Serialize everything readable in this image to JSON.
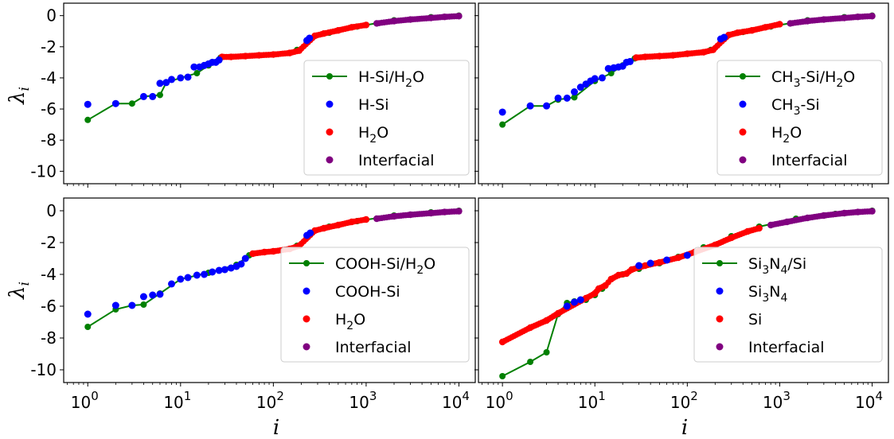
{
  "figure": {
    "ylabel": "λ",
    "ylabel_sub": "i",
    "xlabel": "i"
  },
  "chart_data": [
    {
      "type": "scatter",
      "xscale": "log",
      "xlim": [
        0.55,
        15000
      ],
      "ylim": [
        -10.8,
        0.8
      ],
      "yticks": [
        0,
        -2,
        -4,
        -6,
        -8,
        -10
      ],
      "ytick_labels": [
        "0",
        "-2",
        "-4",
        "-6",
        "-8",
        "-10"
      ],
      "xtick_labels": [],
      "legend_position": "center-right",
      "colors": {
        "line": "#008000",
        "a": "#0000ff",
        "b": "#ff0000",
        "inter": "#800080"
      },
      "legend": [
        {
          "kind": "line",
          "text": "H-Si/H",
          "sub": "2",
          "post": "O"
        },
        {
          "kind": "dot",
          "color_key": "a",
          "text": "H-Si",
          "sub": "",
          "post": ""
        },
        {
          "kind": "dot",
          "color_key": "b",
          "text": "H",
          "sub": "2",
          "post": "O"
        },
        {
          "kind": "dot",
          "color_key": "inter",
          "text": "Interfacial",
          "sub": "",
          "post": ""
        }
      ],
      "line_points": [
        [
          1,
          -6.7
        ],
        [
          2,
          -5.65
        ],
        [
          3,
          -5.65
        ],
        [
          4,
          -5.2
        ],
        [
          6,
          -5.1
        ],
        [
          7,
          -4.3
        ],
        [
          10,
          -4.0
        ],
        [
          15,
          -3.7
        ],
        [
          20,
          -3.2
        ],
        [
          27,
          -2.7
        ],
        [
          50,
          -2.6
        ],
        [
          100,
          -2.5
        ],
        [
          180,
          -2.2
        ],
        [
          250,
          -1.5
        ],
        [
          400,
          -1.1
        ],
        [
          800,
          -0.7
        ],
        [
          2000,
          -0.3
        ],
        [
          5000,
          -0.1
        ],
        [
          10000,
          0
        ]
      ],
      "series_a": [
        [
          1,
          -5.7
        ],
        [
          2,
          -5.65
        ],
        [
          4,
          -5.2
        ],
        [
          5,
          -5.2
        ],
        [
          6,
          -4.35
        ],
        [
          7,
          -4.3
        ],
        [
          8,
          -4.1
        ],
        [
          10,
          -4.0
        ],
        [
          12,
          -3.95
        ],
        [
          14,
          -3.3
        ],
        [
          16,
          -3.3
        ],
        [
          18,
          -3.2
        ],
        [
          20,
          -3.1
        ],
        [
          22,
          -3.0
        ],
        [
          24,
          -3.0
        ],
        [
          26,
          -2.85
        ],
        [
          230,
          -1.6
        ],
        [
          245,
          -1.45
        ]
      ],
      "series_b": [
        [
          28,
          -2.65
        ],
        [
          35,
          -2.65
        ],
        [
          50,
          -2.6
        ],
        [
          70,
          -2.55
        ],
        [
          100,
          -2.5
        ],
        [
          150,
          -2.4
        ],
        [
          190,
          -2.25
        ],
        [
          280,
          -1.3
        ],
        [
          350,
          -1.15
        ],
        [
          500,
          -0.95
        ],
        [
          700,
          -0.75
        ],
        [
          1000,
          -0.6
        ]
      ],
      "series_inter": [
        [
          1300,
          -0.5
        ],
        [
          2000,
          -0.35
        ],
        [
          3000,
          -0.25
        ],
        [
          5000,
          -0.15
        ],
        [
          7000,
          -0.08
        ],
        [
          10000,
          -0.03
        ]
      ]
    },
    {
      "type": "scatter",
      "xscale": "log",
      "xlim": [
        0.55,
        15000
      ],
      "ylim": [
        -10.8,
        0.8
      ],
      "yticks": [
        0,
        -2,
        -4,
        -6,
        -8,
        -10
      ],
      "ytick_labels": [],
      "xtick_labels": [],
      "legend_position": "center-right",
      "colors": {
        "line": "#008000",
        "a": "#0000ff",
        "b": "#ff0000",
        "inter": "#800080"
      },
      "legend": [
        {
          "kind": "line",
          "text": "CH",
          "sub": "3",
          "post": "-Si/H",
          "sub2": "2",
          "post2": "O"
        },
        {
          "kind": "dot",
          "color_key": "a",
          "text": "CH",
          "sub": "3",
          "post": "-Si"
        },
        {
          "kind": "dot",
          "color_key": "b",
          "text": "H",
          "sub": "2",
          "post": "O"
        },
        {
          "kind": "dot",
          "color_key": "inter",
          "text": "Interfacial",
          "sub": "",
          "post": ""
        }
      ],
      "line_points": [
        [
          1,
          -7.0
        ],
        [
          2,
          -5.8
        ],
        [
          3,
          -5.8
        ],
        [
          4,
          -5.4
        ],
        [
          6,
          -5.25
        ],
        [
          10,
          -4.2
        ],
        [
          15,
          -3.7
        ],
        [
          20,
          -3.2
        ],
        [
          27,
          -2.75
        ],
        [
          50,
          -2.6
        ],
        [
          100,
          -2.45
        ],
        [
          180,
          -2.2
        ],
        [
          250,
          -1.4
        ],
        [
          400,
          -1.05
        ],
        [
          800,
          -0.7
        ],
        [
          2000,
          -0.3
        ],
        [
          5000,
          -0.1
        ],
        [
          10000,
          0
        ]
      ],
      "series_a": [
        [
          1,
          -6.2
        ],
        [
          2,
          -5.8
        ],
        [
          3,
          -5.8
        ],
        [
          4,
          -5.3
        ],
        [
          5,
          -5.3
        ],
        [
          6,
          -4.9
        ],
        [
          7,
          -4.6
        ],
        [
          8,
          -4.4
        ],
        [
          9,
          -4.2
        ],
        [
          10,
          -4.05
        ],
        [
          12,
          -4.0
        ],
        [
          14,
          -3.4
        ],
        [
          16,
          -3.35
        ],
        [
          18,
          -3.3
        ],
        [
          20,
          -3.25
        ],
        [
          22,
          -3.0
        ],
        [
          24,
          -2.95
        ],
        [
          230,
          -1.5
        ],
        [
          250,
          -1.4
        ]
      ],
      "series_b": [
        [
          28,
          -2.7
        ],
        [
          35,
          -2.65
        ],
        [
          50,
          -2.6
        ],
        [
          70,
          -2.55
        ],
        [
          100,
          -2.45
        ],
        [
          150,
          -2.35
        ],
        [
          190,
          -2.2
        ],
        [
          280,
          -1.25
        ],
        [
          350,
          -1.1
        ],
        [
          500,
          -0.95
        ],
        [
          700,
          -0.75
        ],
        [
          1000,
          -0.55
        ]
      ],
      "series_inter": [
        [
          1300,
          -0.5
        ],
        [
          2000,
          -0.35
        ],
        [
          3000,
          -0.25
        ],
        [
          5000,
          -0.15
        ],
        [
          7000,
          -0.08
        ],
        [
          10000,
          -0.03
        ]
      ]
    },
    {
      "type": "scatter",
      "xscale": "log",
      "xlim": [
        0.55,
        15000
      ],
      "ylim": [
        -10.8,
        0.8
      ],
      "yticks": [
        0,
        -2,
        -4,
        -6,
        -8,
        -10
      ],
      "ytick_labels": [
        "0",
        "-2",
        "-4",
        "-6",
        "-8",
        "-10"
      ],
      "xtick_labels": [
        "10",
        "10",
        "10",
        "10",
        "10"
      ],
      "xtick_exps": [
        "0",
        "1",
        "2",
        "3",
        "4"
      ],
      "legend_position": "center-right",
      "colors": {
        "line": "#008000",
        "a": "#0000ff",
        "b": "#ff0000",
        "inter": "#800080"
      },
      "legend": [
        {
          "kind": "line",
          "text": "COOH-Si/H",
          "sub": "2",
          "post": "O"
        },
        {
          "kind": "dot",
          "color_key": "a",
          "text": "COOH-Si",
          "sub": "",
          "post": ""
        },
        {
          "kind": "dot",
          "color_key": "b",
          "text": "H",
          "sub": "2",
          "post": "O"
        },
        {
          "kind": "dot",
          "color_key": "inter",
          "text": "Interfacial",
          "sub": "",
          "post": ""
        }
      ],
      "line_points": [
        [
          1,
          -7.3
        ],
        [
          2,
          -6.2
        ],
        [
          3,
          -5.95
        ],
        [
          4,
          -5.9
        ],
        [
          6,
          -5.2
        ],
        [
          10,
          -4.3
        ],
        [
          20,
          -3.9
        ],
        [
          40,
          -3.4
        ],
        [
          55,
          -2.8
        ],
        [
          100,
          -2.55
        ],
        [
          180,
          -2.2
        ],
        [
          250,
          -1.4
        ],
        [
          400,
          -1.0
        ],
        [
          800,
          -0.65
        ],
        [
          2000,
          -0.3
        ],
        [
          5000,
          -0.1
        ],
        [
          10000,
          0
        ]
      ],
      "series_a": [
        [
          1,
          -6.5
        ],
        [
          2,
          -5.95
        ],
        [
          3,
          -5.95
        ],
        [
          4,
          -5.4
        ],
        [
          5,
          -5.3
        ],
        [
          6,
          -5.25
        ],
        [
          8,
          -4.6
        ],
        [
          10,
          -4.3
        ],
        [
          12,
          -4.2
        ],
        [
          15,
          -4.05
        ],
        [
          18,
          -4.0
        ],
        [
          22,
          -3.85
        ],
        [
          26,
          -3.75
        ],
        [
          30,
          -3.7
        ],
        [
          35,
          -3.6
        ],
        [
          40,
          -3.5
        ],
        [
          45,
          -3.35
        ],
        [
          50,
          -3.0
        ],
        [
          230,
          -1.55
        ],
        [
          250,
          -1.4
        ]
      ],
      "series_b": [
        [
          60,
          -2.7
        ],
        [
          80,
          -2.6
        ],
        [
          100,
          -2.55
        ],
        [
          150,
          -2.4
        ],
        [
          190,
          -2.2
        ],
        [
          280,
          -1.25
        ],
        [
          350,
          -1.1
        ],
        [
          500,
          -0.9
        ],
        [
          700,
          -0.7
        ],
        [
          1000,
          -0.55
        ]
      ],
      "series_inter": [
        [
          1300,
          -0.5
        ],
        [
          2000,
          -0.35
        ],
        [
          3000,
          -0.25
        ],
        [
          5000,
          -0.15
        ],
        [
          7000,
          -0.08
        ],
        [
          10000,
          -0.03
        ]
      ]
    },
    {
      "type": "scatter",
      "xscale": "log",
      "xlim": [
        0.55,
        15000
      ],
      "ylim": [
        -10.8,
        0.8
      ],
      "yticks": [
        0,
        -2,
        -4,
        -6,
        -8,
        -10
      ],
      "ytick_labels": [],
      "xtick_labels": [
        "10",
        "10",
        "10",
        "10",
        "10"
      ],
      "xtick_exps": [
        "0",
        "1",
        "2",
        "3",
        "4"
      ],
      "legend_position": "center-right",
      "colors": {
        "line": "#008000",
        "a": "#0000ff",
        "b": "#ff0000",
        "inter": "#800080"
      },
      "legend": [
        {
          "kind": "line",
          "text": "Si",
          "sub": "3",
          "post": "N",
          "sub2": "4",
          "post2": "/Si"
        },
        {
          "kind": "dot",
          "color_key": "a",
          "text": "Si",
          "sub": "3",
          "post": "N",
          "sub2": "4",
          "post2": ""
        },
        {
          "kind": "dot",
          "color_key": "b",
          "text": "Si",
          "sub": "",
          "post": ""
        },
        {
          "kind": "dot",
          "color_key": "inter",
          "text": "Interfacial",
          "sub": "",
          "post": ""
        }
      ],
      "line_points": [
        [
          1,
          -10.4
        ],
        [
          2,
          -9.5
        ],
        [
          3,
          -8.9
        ],
        [
          4,
          -6.5
        ],
        [
          5,
          -5.8
        ],
        [
          6,
          -5.7
        ],
        [
          8,
          -5.6
        ],
        [
          10,
          -5.3
        ],
        [
          12,
          -4.9
        ],
        [
          15,
          -4.3
        ],
        [
          20,
          -4.0
        ],
        [
          30,
          -3.65
        ],
        [
          50,
          -3.3
        ],
        [
          80,
          -2.9
        ],
        [
          150,
          -2.3
        ],
        [
          300,
          -1.6
        ],
        [
          600,
          -1.0
        ],
        [
          1500,
          -0.5
        ],
        [
          4000,
          -0.2
        ],
        [
          10000,
          0
        ]
      ],
      "series_a": [
        [
          5,
          -6.0
        ],
        [
          6,
          -5.75
        ],
        [
          7,
          -5.6
        ],
        [
          30,
          -3.45
        ],
        [
          40,
          -3.3
        ],
        [
          60,
          -3.1
        ],
        [
          100,
          -2.8
        ]
      ],
      "series_b": [
        [
          1,
          -8.25
        ],
        [
          2,
          -7.35
        ],
        [
          3,
          -6.9
        ],
        [
          4,
          -6.45
        ],
        [
          8,
          -5.5
        ],
        [
          10,
          -5.2
        ],
        [
          11,
          -4.9
        ],
        [
          13,
          -4.7
        ],
        [
          15,
          -4.3
        ],
        [
          18,
          -4.05
        ],
        [
          22,
          -3.95
        ],
        [
          25,
          -3.7
        ],
        [
          35,
          -3.45
        ],
        [
          50,
          -3.25
        ],
        [
          80,
          -2.95
        ],
        [
          120,
          -2.6
        ],
        [
          200,
          -2.15
        ],
        [
          300,
          -1.7
        ],
        [
          450,
          -1.3
        ],
        [
          600,
          -1.1
        ]
      ],
      "series_inter": [
        [
          800,
          -0.9
        ],
        [
          1200,
          -0.7
        ],
        [
          2000,
          -0.45
        ],
        [
          3000,
          -0.3
        ],
        [
          5000,
          -0.15
        ],
        [
          7000,
          -0.08
        ],
        [
          10000,
          -0.03
        ]
      ]
    }
  ]
}
